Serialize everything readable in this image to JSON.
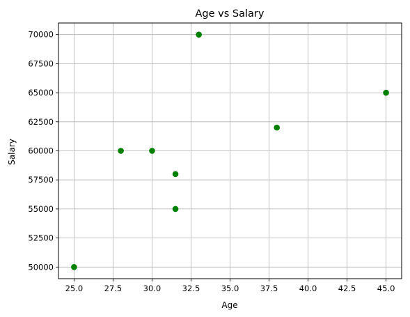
{
  "chart_data": {
    "type": "scatter",
    "title": "Age vs Salary",
    "xlabel": "Age",
    "ylabel": "Salary",
    "xlim": [
      24.0,
      46.0
    ],
    "ylim": [
      49000,
      71000
    ],
    "xticks": [
      25.0,
      27.5,
      30.0,
      32.5,
      35.0,
      37.5,
      40.0,
      42.5,
      45.0
    ],
    "xtick_labels": [
      "25.0",
      "27.5",
      "30.0",
      "32.5",
      "35.0",
      "37.5",
      "40.0",
      "42.5",
      "45.0"
    ],
    "yticks": [
      50000,
      52500,
      55000,
      57500,
      60000,
      62500,
      65000,
      67500,
      70000
    ],
    "ytick_labels": [
      "50000",
      "52500",
      "55000",
      "57500",
      "60000",
      "62500",
      "65000",
      "67500",
      "70000"
    ],
    "grid": true,
    "color": "#008000",
    "points": [
      {
        "x": 25.0,
        "y": 50000
      },
      {
        "x": 28.0,
        "y": 60000
      },
      {
        "x": 30.0,
        "y": 60000
      },
      {
        "x": 31.5,
        "y": 55000
      },
      {
        "x": 31.5,
        "y": 58000
      },
      {
        "x": 33.0,
        "y": 70000
      },
      {
        "x": 38.0,
        "y": 62000
      },
      {
        "x": 45.0,
        "y": 65000
      }
    ]
  }
}
